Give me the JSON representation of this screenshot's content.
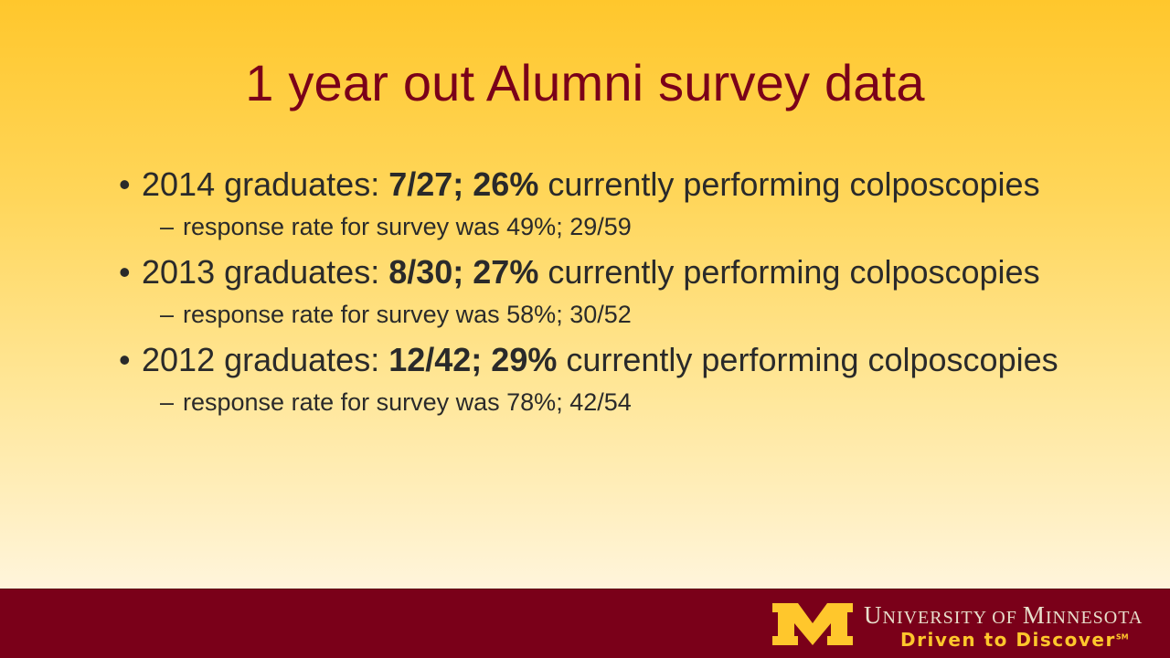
{
  "title": "1 year out Alumni survey data",
  "items": [
    {
      "lead": "2014 graduates: ",
      "stat": "7/27; 26%",
      "rest": " currently performing colposcopies",
      "sub": "response rate for survey was 49%; 29/59"
    },
    {
      "lead": "2013 graduates: ",
      "stat": "8/30; 27%",
      "rest": " currently performing colposcopies",
      "sub": "response rate for survey was 58%; 30/52"
    },
    {
      "lead": "2012 graduates: ",
      "stat": "12/42; 29%",
      "rest": " currently performing colposcopies",
      "sub": "response rate for survey was 78%; 42/54"
    }
  ],
  "bullet_glyph": "•",
  "sub_glyph": "–",
  "footer": {
    "university_U": "U",
    "university_niversity": "NIVERSITY OF ",
    "university_M": "M",
    "university_innesota": "INNESOTA",
    "tagline": "Driven to Discover",
    "tagline_mark": "SM",
    "brand_maroon": "#7a0019",
    "brand_gold": "#ffc72c"
  }
}
